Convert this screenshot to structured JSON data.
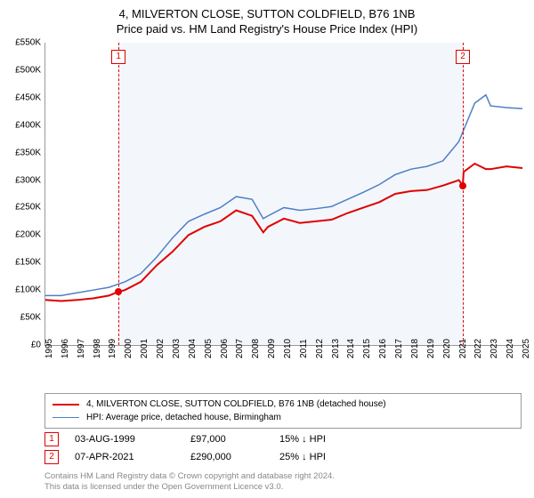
{
  "title_line1": "4, MILVERTON CLOSE, SUTTON COLDFIELD, B76 1NB",
  "title_line2": "Price paid vs. HM Land Registry's House Price Index (HPI)",
  "chart": {
    "type": "line",
    "x_years": [
      1995,
      1996,
      1997,
      1998,
      1999,
      2000,
      2001,
      2002,
      2003,
      2004,
      2005,
      2006,
      2007,
      2008,
      2009,
      2010,
      2011,
      2012,
      2013,
      2014,
      2015,
      2016,
      2017,
      2018,
      2019,
      2020,
      2021,
      2022,
      2023,
      2024,
      2025
    ],
    "ylim": [
      0,
      550000
    ],
    "ytick_step": 50000,
    "ytick_labels": [
      "£0",
      "£50K",
      "£100K",
      "£150K",
      "£200K",
      "£250K",
      "£300K",
      "£350K",
      "£400K",
      "£450K",
      "£500K",
      "£550K"
    ],
    "background": "#ffffff",
    "axis_color": "#999999",
    "shade_color": "rgba(160,190,230,0.12)",
    "shade_from_year": 1999.6,
    "shade_to_year": 2021.25,
    "series": [
      {
        "name": "price_paid",
        "color": "#e00000",
        "width": 2,
        "data": [
          [
            1995,
            82000
          ],
          [
            1996,
            80000
          ],
          [
            1997,
            82000
          ],
          [
            1998,
            85000
          ],
          [
            1999,
            90000
          ],
          [
            1999.6,
            97000
          ],
          [
            2000,
            100000
          ],
          [
            2001,
            115000
          ],
          [
            2002,
            145000
          ],
          [
            2003,
            170000
          ],
          [
            2004,
            200000
          ],
          [
            2005,
            215000
          ],
          [
            2006,
            225000
          ],
          [
            2007,
            245000
          ],
          [
            2008,
            235000
          ],
          [
            2008.7,
            205000
          ],
          [
            2009,
            215000
          ],
          [
            2010,
            230000
          ],
          [
            2011,
            222000
          ],
          [
            2012,
            225000
          ],
          [
            2013,
            228000
          ],
          [
            2014,
            240000
          ],
          [
            2015,
            250000
          ],
          [
            2016,
            260000
          ],
          [
            2017,
            275000
          ],
          [
            2018,
            280000
          ],
          [
            2019,
            282000
          ],
          [
            2020,
            290000
          ],
          [
            2021,
            300000
          ],
          [
            2021.25,
            290000
          ],
          [
            2021.3,
            315000
          ],
          [
            2022,
            330000
          ],
          [
            2022.7,
            320000
          ],
          [
            2023,
            320000
          ],
          [
            2024,
            325000
          ],
          [
            2025,
            322000
          ]
        ]
      },
      {
        "name": "hpi",
        "color": "#4f7fc4",
        "width": 1.5,
        "data": [
          [
            1995,
            90000
          ],
          [
            1996,
            90000
          ],
          [
            1997,
            95000
          ],
          [
            1998,
            100000
          ],
          [
            1999,
            105000
          ],
          [
            2000,
            115000
          ],
          [
            2001,
            130000
          ],
          [
            2002,
            160000
          ],
          [
            2003,
            195000
          ],
          [
            2004,
            225000
          ],
          [
            2005,
            238000
          ],
          [
            2006,
            250000
          ],
          [
            2007,
            270000
          ],
          [
            2008,
            265000
          ],
          [
            2008.7,
            230000
          ],
          [
            2009,
            235000
          ],
          [
            2010,
            250000
          ],
          [
            2011,
            245000
          ],
          [
            2012,
            248000
          ],
          [
            2013,
            252000
          ],
          [
            2014,
            265000
          ],
          [
            2015,
            278000
          ],
          [
            2016,
            292000
          ],
          [
            2017,
            310000
          ],
          [
            2018,
            320000
          ],
          [
            2019,
            325000
          ],
          [
            2020,
            335000
          ],
          [
            2021,
            370000
          ],
          [
            2022,
            440000
          ],
          [
            2022.7,
            455000
          ],
          [
            2023,
            435000
          ],
          [
            2024,
            432000
          ],
          [
            2025,
            430000
          ]
        ]
      }
    ],
    "markers": [
      {
        "n": "1",
        "year": 1999.6,
        "price": 97000
      },
      {
        "n": "2",
        "year": 2021.25,
        "price": 290000
      }
    ]
  },
  "legend": {
    "line1": "4, MILVERTON CLOSE, SUTTON COLDFIELD, B76 1NB (detached house)",
    "line2": "HPI: Average price, detached house, Birmingham"
  },
  "sales": [
    {
      "n": "1",
      "date": "03-AUG-1999",
      "price": "£97,000",
      "hpi": "15% ↓ HPI"
    },
    {
      "n": "2",
      "date": "07-APR-2021",
      "price": "£290,000",
      "hpi": "25% ↓ HPI"
    }
  ],
  "footer_line1": "Contains HM Land Registry data © Crown copyright and database right 2024.",
  "footer_line2": "This data is licensed under the Open Government Licence v3.0.",
  "colors": {
    "red": "#e00000",
    "blue": "#4f7fc4",
    "grey": "#888888"
  }
}
